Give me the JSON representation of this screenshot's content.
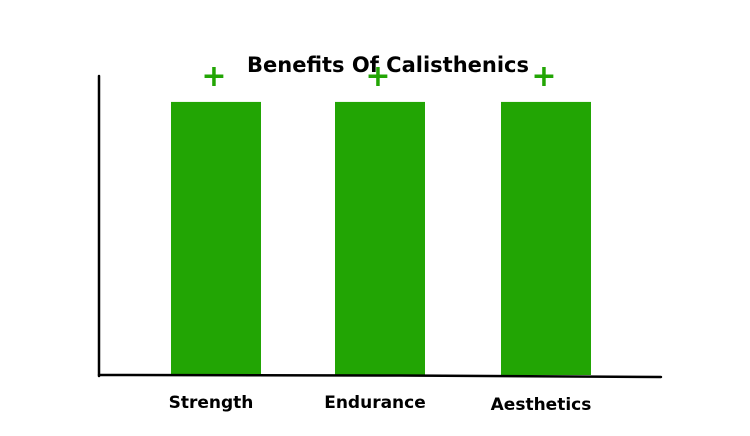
{
  "chart_data": {
    "type": "bar",
    "title": "Benefits Of Calisthenics",
    "xlabel": "",
    "ylabel": "",
    "categories": [
      "Strength",
      "Endurance",
      "Aesthetics"
    ],
    "values": [
      1,
      1,
      1
    ],
    "data_labels": [
      "+",
      "+",
      "+"
    ],
    "ylim": [
      0,
      1.3
    ],
    "grid": false,
    "legend": "none",
    "bar_color": "#22a504",
    "label_color": "#22a504",
    "axis_color": "#000000"
  }
}
